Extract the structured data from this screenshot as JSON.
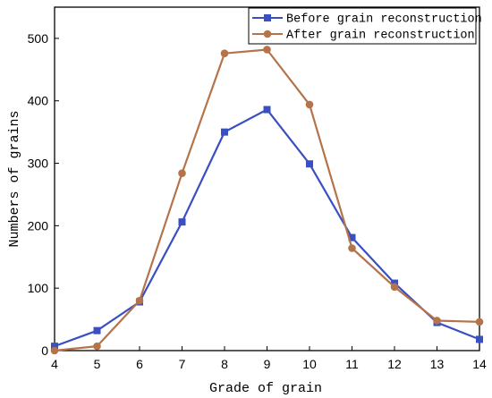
{
  "chart_data": {
    "type": "line",
    "title": "",
    "xlabel": "Grade of grain",
    "ylabel": "Numbers of grains",
    "xlim": [
      4,
      14
    ],
    "ylim": [
      0,
      550
    ],
    "x_ticks": [
      4,
      5,
      6,
      7,
      8,
      9,
      10,
      11,
      12,
      13,
      14
    ],
    "y_ticks": [
      0,
      100,
      200,
      300,
      400,
      500
    ],
    "grid": false,
    "legend_position": "top-right",
    "x": [
      4,
      5,
      6,
      7,
      8,
      9,
      10,
      11,
      12,
      13,
      14
    ],
    "series": [
      {
        "name": "Before grain reconstruction",
        "color": "#3a4fc0",
        "marker": "square",
        "values": [
          7,
          32,
          78,
          206,
          350,
          386,
          299,
          181,
          108,
          45,
          18
        ]
      },
      {
        "name": "After grain reconstruction",
        "color": "#b5734a",
        "marker": "circle",
        "values": [
          0,
          7,
          80,
          284,
          476,
          482,
          394,
          164,
          102,
          48,
          46
        ]
      }
    ]
  }
}
